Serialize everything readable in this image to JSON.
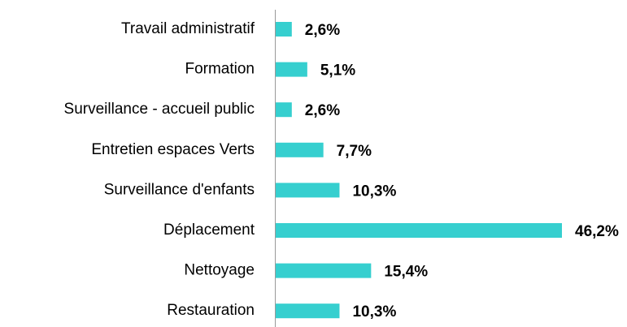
{
  "chart_data": {
    "type": "bar",
    "orientation": "horizontal",
    "categories": [
      "Travail administratif",
      "Formation",
      "Surveillance - accueil public",
      "Entretien espaces Verts",
      "Surveillance d'enfants",
      "Déplacement",
      "Nettoyage",
      "Restauration"
    ],
    "values": [
      2.6,
      5.1,
      2.6,
      7.7,
      10.3,
      46.2,
      15.4,
      10.3
    ],
    "value_labels": [
      "2,6%",
      "5,1%",
      "2,6%",
      "7,7%",
      "10,3%",
      "46,2%",
      "15,4%",
      "10,3%"
    ],
    "color": "#36cfcf"
  }
}
